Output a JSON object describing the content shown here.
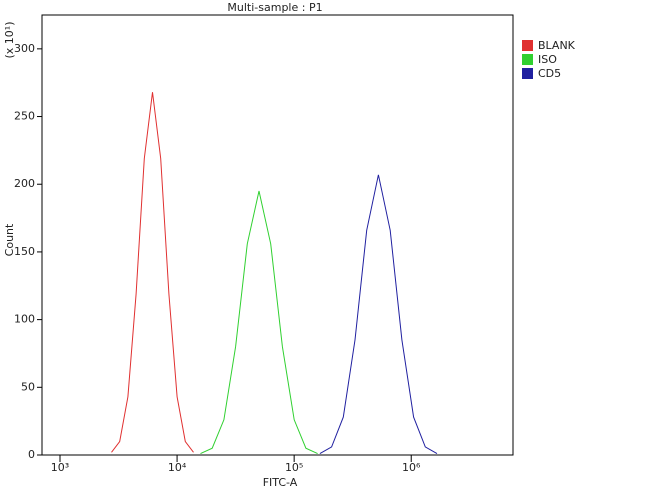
{
  "chart_data": {
    "type": "line",
    "title": "Multi-sample : P1",
    "x_label": "FITC-A",
    "y_label": "Count",
    "y_unit_label": "(x 10¹)",
    "x_log": true,
    "legend": "right",
    "xlim": [
      702,
      7400000
    ],
    "xticks": [
      {
        "value": 1000,
        "label": "10³"
      },
      {
        "value": 10000,
        "label": "10⁴"
      },
      {
        "value": 100000,
        "label": "10⁵"
      },
      {
        "value": 1000000,
        "label": "10⁶"
      }
    ],
    "ylim": [
      0,
      325
    ],
    "yticks": [
      0,
      50,
      100,
      150,
      200,
      250,
      300
    ],
    "series": [
      {
        "name": "BLANK",
        "color": "#e03030",
        "x": [
          2754,
          3236,
          3802,
          4467,
          5248,
          6166,
          7244,
          8511,
          10000,
          11749,
          13804
        ],
        "values": [
          2,
          10,
          43,
          119,
          219,
          268,
          219,
          119,
          43,
          10,
          2
        ]
      },
      {
        "name": "ISO",
        "color": "#30d030",
        "x": [
          15849,
          19953,
          25119,
          31623,
          39811,
          50119,
          63096,
          79433,
          100000,
          125893,
          158489
        ],
        "values": [
          1,
          5,
          26,
          80,
          156,
          195,
          156,
          80,
          26,
          5,
          1
        ]
      },
      {
        "name": "CD5",
        "color": "#2020a0",
        "x": [
          165959,
          208930,
          263027,
          331131,
          416869,
          524807,
          660693,
          831764,
          1047129,
          1318257,
          1659587
        ],
        "values": [
          1,
          6,
          28,
          85,
          166,
          207,
          166,
          85,
          28,
          6,
          1
        ]
      }
    ]
  }
}
